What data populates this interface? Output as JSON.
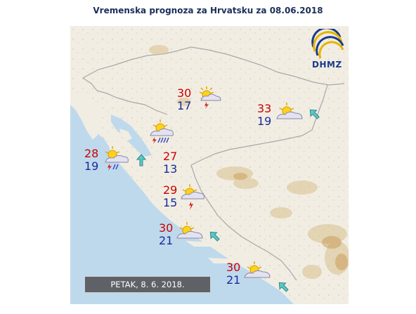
{
  "header": {
    "title": "Vremenska prognoza za Hrvatsku za 08.06.2018"
  },
  "logo": {
    "text": "DHMZ"
  },
  "date_bar": {
    "label": "PETAK, 8. 6. 2018."
  },
  "colors": {
    "tmax": "#cc0000",
    "tmin": "#1a2a9a",
    "sea": "#bcd8ec",
    "land": "#f2efe6",
    "arrow": "#5fc6c6"
  },
  "locations": [
    {
      "id": "zagreb",
      "tmax": "30",
      "tmin": "17",
      "icon": "sun-cloud-thunder-icon"
    },
    {
      "id": "osijek",
      "tmax": "33",
      "tmin": "19",
      "icon": "sun-cloud-icon"
    },
    {
      "id": "gorski-kotar",
      "icon": "sun-cloud-thunder-rain-icon"
    },
    {
      "id": "rijeka",
      "tmax": "28",
      "tmin": "19",
      "icon": "sun-cloud-thunder-rain-icon"
    },
    {
      "id": "gospic",
      "tmax": "27",
      "tmin": "13"
    },
    {
      "id": "knin",
      "tmax": "29",
      "tmin": "15",
      "icon": "sun-cloud-thunder-icon"
    },
    {
      "id": "split",
      "tmax": "30",
      "tmin": "21",
      "icon": "sun-cloud-icon"
    },
    {
      "id": "dubrovnik",
      "tmax": "30",
      "tmin": "21",
      "icon": "sun-cloud-icon"
    }
  ],
  "wind_arrows": [
    {
      "id": "osijek-wind",
      "direction": "NW"
    },
    {
      "id": "velebit-wind",
      "direction": "N"
    },
    {
      "id": "split-wind",
      "direction": "NW"
    },
    {
      "id": "dubrovnik-wind",
      "direction": "NW"
    }
  ]
}
